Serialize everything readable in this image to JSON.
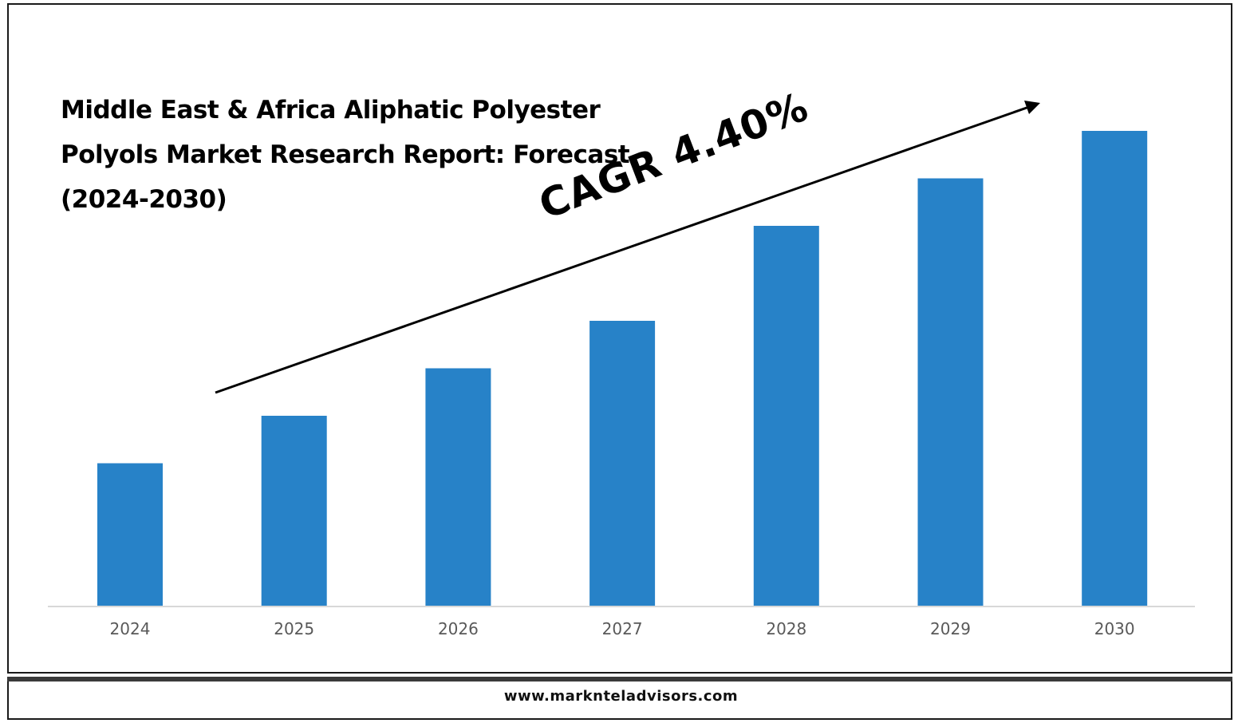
{
  "title_lines": [
    "Middle East & Africa Aliphatic Polyester",
    "Polyols Market Research Report: Forecast",
    "(2024-2030)"
  ],
  "annotation": "CAGR 4.40%",
  "footer": "www.marknteladvisors.com",
  "colors": {
    "bar": "#2782c8",
    "axis": "#cccccc",
    "arrow": "#000000"
  },
  "chart_data": {
    "type": "bar",
    "title": "Middle East & Africa Aliphatic Polyester Polyols Market Research Report: Forecast (2024-2030)",
    "categories": [
      "2024",
      "2025",
      "2026",
      "2027",
      "2028",
      "2029",
      "2030"
    ],
    "values": [
      30,
      40,
      50,
      60,
      80,
      90,
      100
    ],
    "xlabel": "",
    "ylabel": "",
    "ylim": [
      0,
      100
    ],
    "grid": false,
    "legend": "none",
    "annotation": "CAGR 4.40%"
  }
}
